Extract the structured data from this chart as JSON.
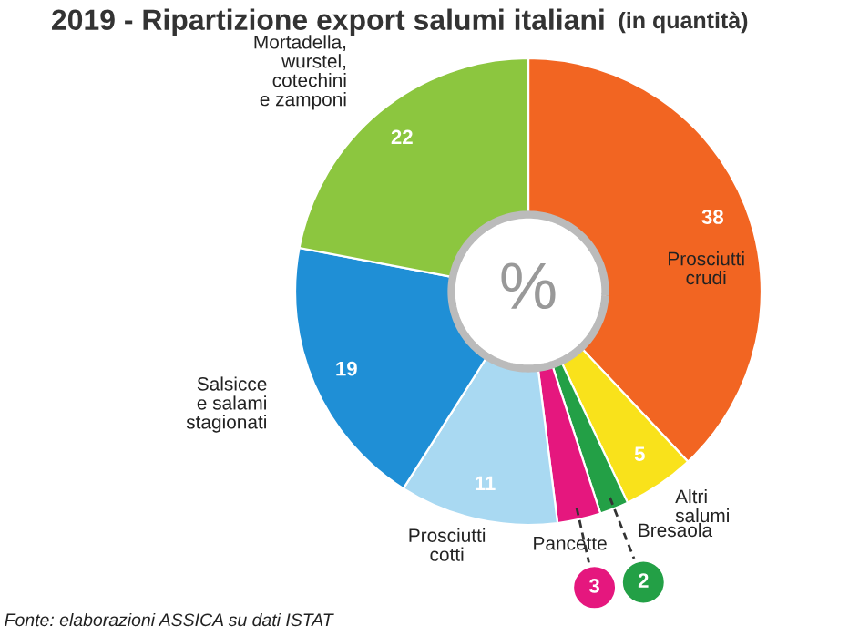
{
  "chart_data": {
    "type": "donut",
    "title": "2019 - Ripartizione export salumi italiani",
    "subtitle": "(in quantità)",
    "categories": [
      "Prosciutti\ncrudi",
      "Altri\nsalumi",
      "Bresaola",
      "Pancette",
      "Prosciutti\ncotti",
      "Salsicce\ne salami\nstagionati",
      "Mortadella,\nwurstel,\ncotechini\ne zamponi"
    ],
    "values": [
      38,
      5,
      2,
      3,
      11,
      19,
      22
    ],
    "colors": [
      "#f26522",
      "#f9e21b",
      "#23a046",
      "#e5177e",
      "#a9d9f2",
      "#1f8fd6",
      "#8cc63f"
    ],
    "data_labels": true,
    "annotations": [
      "%",
      "Fonte: elaborazioni ASSICA su dati ISTAT"
    ]
  }
}
